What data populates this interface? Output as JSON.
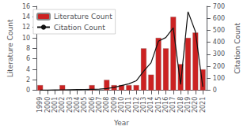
{
  "chart_data": {
    "type": "bar",
    "xlabel": "Year",
    "ylabel": "Literature Count",
    "y2label": "Citation Count",
    "categories": [
      "1999",
      "2000",
      "2001",
      "2002",
      "2003",
      "2004",
      "2005",
      "2006",
      "2007",
      "2008",
      "2009",
      "2010",
      "2011",
      "2012",
      "2013",
      "2014",
      "2015",
      "2016",
      "2017",
      "2018",
      "2019",
      "2020",
      "2021"
    ],
    "series": [
      {
        "name": "Literature Count",
        "type": "bar",
        "color": "#cc2222",
        "values": [
          1,
          0,
          0,
          1,
          0,
          0,
          0,
          1,
          0,
          2,
          1,
          1,
          1,
          1,
          8,
          3,
          10,
          8,
          14,
          5,
          10,
          11,
          4
        ]
      },
      {
        "name": "Citation Count",
        "type": "line",
        "color": "#111111",
        "axis": "y2",
        "values": [
          2,
          3,
          4,
          5,
          6,
          7,
          8,
          9,
          10,
          15,
          25,
          40,
          55,
          80,
          160,
          230,
          410,
          440,
          520,
          50,
          655,
          490,
          30
        ]
      }
    ],
    "ylim": [
      0,
      16
    ],
    "yticks": [
      0,
      2,
      4,
      6,
      8,
      10,
      12,
      14,
      16
    ],
    "y2lim": [
      0,
      700
    ],
    "y2ticks": [
      0,
      100,
      200,
      300,
      400,
      500,
      600,
      700
    ],
    "legend": "upper left",
    "grid": false
  }
}
